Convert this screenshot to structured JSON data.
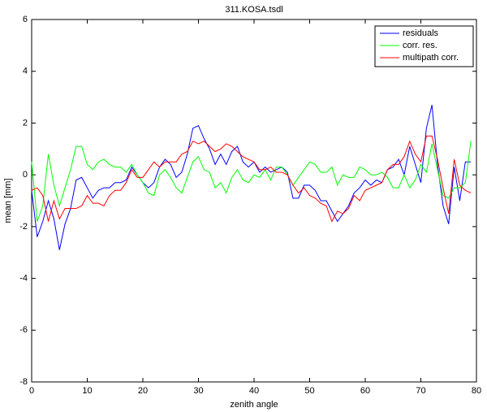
{
  "chart_data": {
    "type": "line",
    "title": "311.KOSA.tsdl",
    "xlabel": "zenith angle",
    "ylabel": "mean  [mm]",
    "x": [
      0,
      1,
      2,
      3,
      4,
      5,
      6,
      7,
      8,
      9,
      10,
      11,
      12,
      13,
      14,
      15,
      16,
      17,
      18,
      19,
      20,
      21,
      22,
      23,
      24,
      25,
      26,
      27,
      28,
      29,
      30,
      31,
      32,
      33,
      34,
      35,
      36,
      37,
      38,
      39,
      40,
      41,
      42,
      43,
      44,
      45,
      46,
      47,
      48,
      49,
      50,
      51,
      52,
      53,
      54,
      55,
      56,
      57,
      58,
      59,
      60,
      61,
      62,
      63,
      64,
      65,
      66,
      67,
      68,
      69,
      70,
      71,
      72,
      73,
      74,
      75,
      76,
      77,
      78,
      79
    ],
    "series": [
      {
        "name": "residuals",
        "color": "#0000ff",
        "values": [
          -0.6,
          -2.4,
          -1.8,
          -1.0,
          -1.7,
          -2.9,
          -1.9,
          -1.3,
          -0.2,
          -0.1,
          -0.5,
          -0.9,
          -0.6,
          -0.5,
          -0.5,
          -0.3,
          -0.3,
          -0.2,
          0.3,
          0.0,
          -0.3,
          -0.5,
          -0.3,
          0.3,
          0.6,
          0.4,
          -0.1,
          0.1,
          0.8,
          1.8,
          1.9,
          1.4,
          1.0,
          0.4,
          0.8,
          0.4,
          0.9,
          1.1,
          0.5,
          0.3,
          0.5,
          0.1,
          0.3,
          0.1,
          0.2,
          0.3,
          0.1,
          -0.9,
          -0.9,
          -0.4,
          -0.4,
          -0.6,
          -1.0,
          -1.0,
          -1.4,
          -1.8,
          -1.5,
          -1.2,
          -0.7,
          -0.5,
          -0.2,
          -0.4,
          -0.2,
          -0.3,
          0.2,
          0.3,
          0.6,
          0.0,
          1.1,
          0.4,
          -0.3,
          1.8,
          2.7,
          0.4,
          -1.2,
          -1.9,
          0.3,
          -1.0,
          0.5,
          0.5
        ]
      },
      {
        "name": "corr. res.",
        "color": "#00ff00",
        "values": [
          0.5,
          -1.8,
          -1.2,
          0.8,
          -0.4,
          -1.2,
          -0.5,
          0.2,
          1.1,
          1.1,
          0.4,
          0.2,
          0.5,
          0.6,
          0.4,
          0.3,
          0.3,
          0.1,
          0.4,
          0.0,
          -0.3,
          -0.7,
          -0.8,
          0.0,
          0.2,
          -0.1,
          -0.5,
          -0.7,
          -0.1,
          0.5,
          0.7,
          0.2,
          0.1,
          -0.5,
          -0.3,
          -0.7,
          -0.1,
          0.2,
          -0.2,
          -0.3,
          0.0,
          -0.1,
          0.2,
          -0.2,
          0.3,
          0.3,
          0.0,
          -0.4,
          -0.1,
          0.2,
          0.5,
          0.4,
          0.1,
          0.1,
          0.3,
          -0.4,
          0.0,
          -0.1,
          -0.1,
          0.3,
          0.2,
          0.0,
          0.0,
          0.1,
          -0.1,
          -0.5,
          -0.5,
          0.0,
          -0.5,
          -0.2,
          0.4,
          0.1,
          1.2,
          0.2,
          -0.8,
          -0.9,
          -0.5,
          -0.5,
          -0.3,
          1.3
        ]
      },
      {
        "name": "multipath corr.",
        "color": "#ff0000",
        "values": [
          -0.6,
          -0.5,
          -0.8,
          -1.8,
          -1.0,
          -1.7,
          -1.3,
          -1.3,
          -1.3,
          -1.2,
          -0.8,
          -1.1,
          -1.1,
          -1.2,
          -0.8,
          -0.6,
          -0.6,
          -0.3,
          0.2,
          -0.1,
          -0.1,
          0.2,
          0.5,
          0.3,
          0.5,
          0.5,
          0.5,
          0.8,
          0.9,
          1.3,
          1.2,
          1.3,
          1.1,
          0.9,
          1.0,
          1.2,
          1.1,
          0.9,
          0.7,
          0.6,
          0.5,
          0.2,
          0.2,
          0.3,
          0.1,
          0.1,
          0.0,
          -0.4,
          -0.7,
          -0.5,
          -0.8,
          -0.9,
          -1.1,
          -1.2,
          -1.8,
          -1.4,
          -1.5,
          -1.3,
          -0.8,
          -1.0,
          -0.6,
          -0.5,
          -0.4,
          -0.3,
          0.2,
          0.4,
          0.4,
          0.7,
          1.3,
          0.8,
          0.5,
          1.5,
          1.5,
          0.6,
          -0.5,
          -1.5,
          0.6,
          -0.4,
          -0.6,
          -0.7
        ]
      }
    ],
    "xlim": [
      0,
      80
    ],
    "xticks": [
      0,
      10,
      20,
      30,
      40,
      50,
      60,
      70,
      80
    ],
    "ylim": [
      -8,
      6
    ],
    "yticks": [
      -8,
      -6,
      -4,
      -2,
      0,
      2,
      4,
      6
    ],
    "legend": "upper right"
  }
}
